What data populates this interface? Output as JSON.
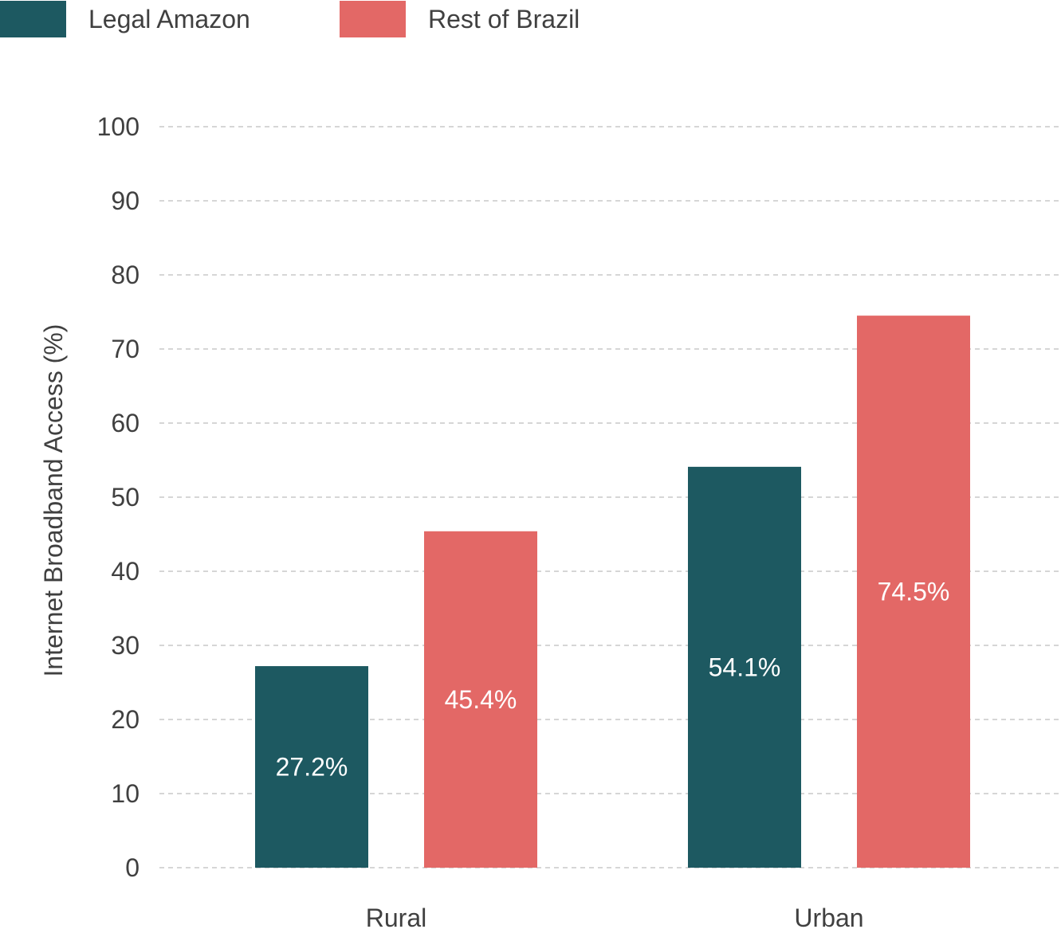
{
  "chart_data": {
    "type": "bar",
    "categories": [
      "Rural",
      "Urban"
    ],
    "series": [
      {
        "name": "Legal Amazon",
        "values": [
          27.2,
          54.1
        ],
        "color": "#1d5961",
        "labels": [
          "27.2%",
          "54.1%"
        ]
      },
      {
        "name": "Rest of Brazil",
        "values": [
          45.4,
          74.5
        ],
        "color": "#e36866",
        "labels": [
          "45.4%",
          "74.5%"
        ]
      }
    ],
    "title": "",
    "xlabel": "",
    "ylabel": "Internet Broadband Access (%)",
    "ylim": [
      0,
      100
    ],
    "yticks": [
      0,
      10,
      20,
      30,
      40,
      50,
      60,
      70,
      80,
      90,
      100
    ],
    "grid": true,
    "legend_position": "top-left"
  }
}
